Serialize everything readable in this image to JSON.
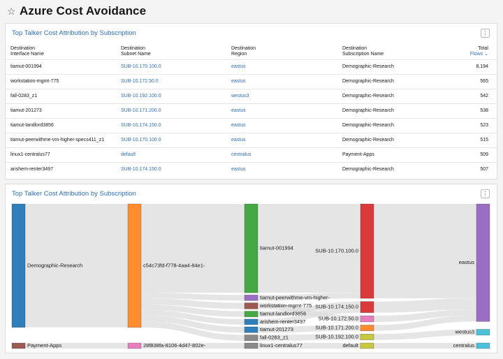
{
  "page": {
    "title": "Azure Cost Avoidance",
    "star_icon": "☆"
  },
  "table_card": {
    "title": "Top Talker Cost Attribution by Subscription",
    "menu_icon": "⋮",
    "columns": [
      {
        "line1": "Destination",
        "line2": "Interface Name"
      },
      {
        "line1": "Destination",
        "line2": "Subnet Name"
      },
      {
        "line1": "Destination",
        "line2": "Region"
      },
      {
        "line1": "Destination",
        "line2": "Subscription Name"
      },
      {
        "line1": "Total",
        "line2": "Flows"
      }
    ],
    "rows": [
      {
        "interface": "tiamut-001994",
        "subnet": "SUB-10.170.100.0",
        "region": "eastus",
        "subscription": "Demographic-Research",
        "flows": "8,194"
      },
      {
        "interface": "workstation-mgmt-775",
        "subnet": "SUB-10.172.50.0",
        "region": "eastus",
        "subscription": "Demographic-Research",
        "flows": "565"
      },
      {
        "interface": "fall-0283_z1",
        "subnet": "SUB-10.192.100.0",
        "region": "westus3",
        "subscription": "Demographic-Research",
        "flows": "542"
      },
      {
        "interface": "tiamut-201273",
        "subnet": "SUB-10.171.200.0",
        "region": "eastus",
        "subscription": "Demographic-Research",
        "flows": "538"
      },
      {
        "interface": "tiamut-landlord3856",
        "subnet": "SUB-10.174.150.0",
        "region": "eastus",
        "subscription": "Demographic-Research",
        "flows": "523"
      },
      {
        "interface": "tiamut-peerwithme-vm-higher-specs411_z1",
        "subnet": "SUB-10.170.100.0",
        "region": "eastus",
        "subscription": "Demographic-Research",
        "flows": "515"
      },
      {
        "interface": "linux1-centralus77",
        "subnet": "default",
        "region": "centralus",
        "subscription": "Payment-Apps",
        "flows": "509"
      },
      {
        "interface": "arishem-renter3497",
        "subnet": "SUB-10.174.150.0",
        "region": "eastus",
        "subscription": "Demographic-Research",
        "flows": "507"
      }
    ]
  },
  "sankey_card": {
    "title": "Top Talker Cost Attribution by Subscription",
    "menu_icon": "⋮",
    "colors": {
      "link": "#dcdcdc"
    },
    "nodes": [
      {
        "id": "sub_dr",
        "label": "Demographic-Research",
        "col": 0,
        "value": 11384,
        "color": "#2f7fba"
      },
      {
        "id": "sub_pa",
        "label": "Payment-Apps",
        "col": 0,
        "value": 509,
        "color": "#9c5a50"
      },
      {
        "id": "tenant1",
        "label": "c54c73fd-f778-4aa4-84e1-",
        "col": 1,
        "value": 11384,
        "color": "#ff8c2e"
      },
      {
        "id": "tenant2",
        "label": "28f838fa-8106-4d47-802e-",
        "col": 1,
        "value": 509,
        "color": "#e67fbe"
      },
      {
        "id": "i_tiamut001994",
        "label": "tiamut-001994",
        "col": 2,
        "value": 8194,
        "color": "#46a844"
      },
      {
        "id": "i_peer",
        "label": "tiamut-peerwithme-vm-higher-",
        "col": 2,
        "value": 515,
        "color": "#9c6ec1"
      },
      {
        "id": "i_ws",
        "label": "workstation-mgmt-775",
        "col": 2,
        "value": 565,
        "color": "#9c5a50"
      },
      {
        "id": "i_landlord",
        "label": "tiamut-landlord3856",
        "col": 2,
        "value": 523,
        "color": "#46a844"
      },
      {
        "id": "i_arishem",
        "label": "arishem-renter3497",
        "col": 2,
        "value": 507,
        "color": "#2f7fba"
      },
      {
        "id": "i_201273",
        "label": "tiamut-201273",
        "col": 2,
        "value": 538,
        "color": "#2f7fba"
      },
      {
        "id": "i_fall",
        "label": "fall-0283_z1",
        "col": 2,
        "value": 542,
        "color": "#8a8a8a"
      },
      {
        "id": "i_linux",
        "label": "linux1-centralus77",
        "col": 2,
        "value": 509,
        "color": "#8a8a8a"
      },
      {
        "id": "s_170",
        "label": "SUB-10.170.100.0",
        "col": 3,
        "value": 8709,
        "color": "#d93a3a"
      },
      {
        "id": "s_174",
        "label": "SUB-10.174.150.0",
        "col": 3,
        "value": 1030,
        "color": "#d93a3a"
      },
      {
        "id": "s_172",
        "label": "SUB-10.172.50.0",
        "col": 3,
        "value": 565,
        "color": "#e67fbe"
      },
      {
        "id": "s_171",
        "label": "SUB-10.171.200.0",
        "col": 3,
        "value": 538,
        "color": "#ff8c2e"
      },
      {
        "id": "s_192",
        "label": "SUB-10.192.100.0",
        "col": 3,
        "value": 542,
        "color": "#c8c840"
      },
      {
        "id": "s_default",
        "label": "default",
        "col": 3,
        "value": 509,
        "color": "#c8c840"
      },
      {
        "id": "r_eastus",
        "label": "eastus",
        "col": 4,
        "value": 10842,
        "color": "#9c6ec1"
      },
      {
        "id": "r_westus3",
        "label": "westus3",
        "col": 4,
        "value": 542,
        "color": "#4cc1d9"
      },
      {
        "id": "r_centralus",
        "label": "centralus",
        "col": 4,
        "value": 509,
        "color": "#4cc1d9"
      }
    ],
    "links": [
      {
        "s": "sub_dr",
        "t": "tenant1",
        "v": 11384
      },
      {
        "s": "sub_pa",
        "t": "tenant2",
        "v": 509
      },
      {
        "s": "tenant1",
        "t": "i_tiamut001994",
        "v": 8194
      },
      {
        "s": "tenant1",
        "t": "i_peer",
        "v": 515
      },
      {
        "s": "tenant1",
        "t": "i_ws",
        "v": 565
      },
      {
        "s": "tenant1",
        "t": "i_landlord",
        "v": 523
      },
      {
        "s": "tenant1",
        "t": "i_arishem",
        "v": 507
      },
      {
        "s": "tenant1",
        "t": "i_201273",
        "v": 538
      },
      {
        "s": "tenant1",
        "t": "i_fall",
        "v": 542
      },
      {
        "s": "tenant2",
        "t": "i_linux",
        "v": 509
      },
      {
        "s": "i_tiamut001994",
        "t": "s_170",
        "v": 8194
      },
      {
        "s": "i_peer",
        "t": "s_170",
        "v": 515
      },
      {
        "s": "i_ws",
        "t": "s_172",
        "v": 565
      },
      {
        "s": "i_landlord",
        "t": "s_174",
        "v": 523
      },
      {
        "s": "i_arishem",
        "t": "s_174",
        "v": 507
      },
      {
        "s": "i_201273",
        "t": "s_171",
        "v": 538
      },
      {
        "s": "i_fall",
        "t": "s_192",
        "v": 542
      },
      {
        "s": "i_linux",
        "t": "s_default",
        "v": 509
      },
      {
        "s": "s_170",
        "t": "r_eastus",
        "v": 8709
      },
      {
        "s": "s_174",
        "t": "r_eastus",
        "v": 1030
      },
      {
        "s": "s_172",
        "t": "r_eastus",
        "v": 565
      },
      {
        "s": "s_171",
        "t": "r_eastus",
        "v": 538
      },
      {
        "s": "s_192",
        "t": "r_westus3",
        "v": 542
      },
      {
        "s": "s_default",
        "t": "r_centralus",
        "v": 509
      }
    ]
  }
}
